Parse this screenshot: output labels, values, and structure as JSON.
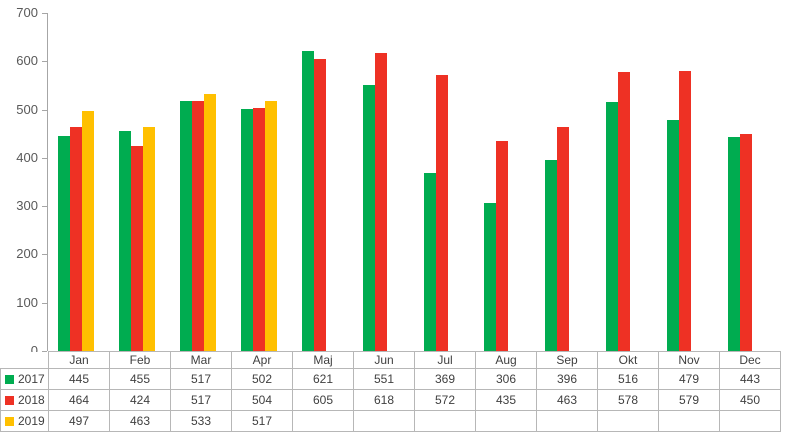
{
  "chart_data": {
    "type": "bar",
    "title": "",
    "categories": [
      "Jan",
      "Feb",
      "Mar",
      "Apr",
      "Maj",
      "Jun",
      "Jul",
      "Aug",
      "Sep",
      "Okt",
      "Nov",
      "Dec"
    ],
    "series": [
      {
        "name": "2017",
        "color": "#00AC50",
        "values": [
          445,
          455,
          517,
          502,
          621,
          551,
          369,
          306,
          396,
          516,
          479,
          443
        ]
      },
      {
        "name": "2018",
        "color": "#EE3124",
        "values": [
          464,
          424,
          517,
          504,
          605,
          618,
          572,
          435,
          463,
          578,
          579,
          450
        ]
      },
      {
        "name": "2019",
        "color": "#FFC000",
        "values": [
          497,
          463,
          533,
          517,
          null,
          null,
          null,
          null,
          null,
          null,
          null,
          null
        ]
      }
    ],
    "ylim": [
      0,
      700
    ],
    "yticks": [
      0,
      100,
      200,
      300,
      400,
      500,
      600,
      700
    ],
    "grid": false,
    "legend_position": "data-table-left",
    "axis_label_color": "#595959",
    "axis_line_color": "#A6A6A6",
    "table_border_color": "#B7B7B7",
    "table_text_color": "#404040"
  }
}
